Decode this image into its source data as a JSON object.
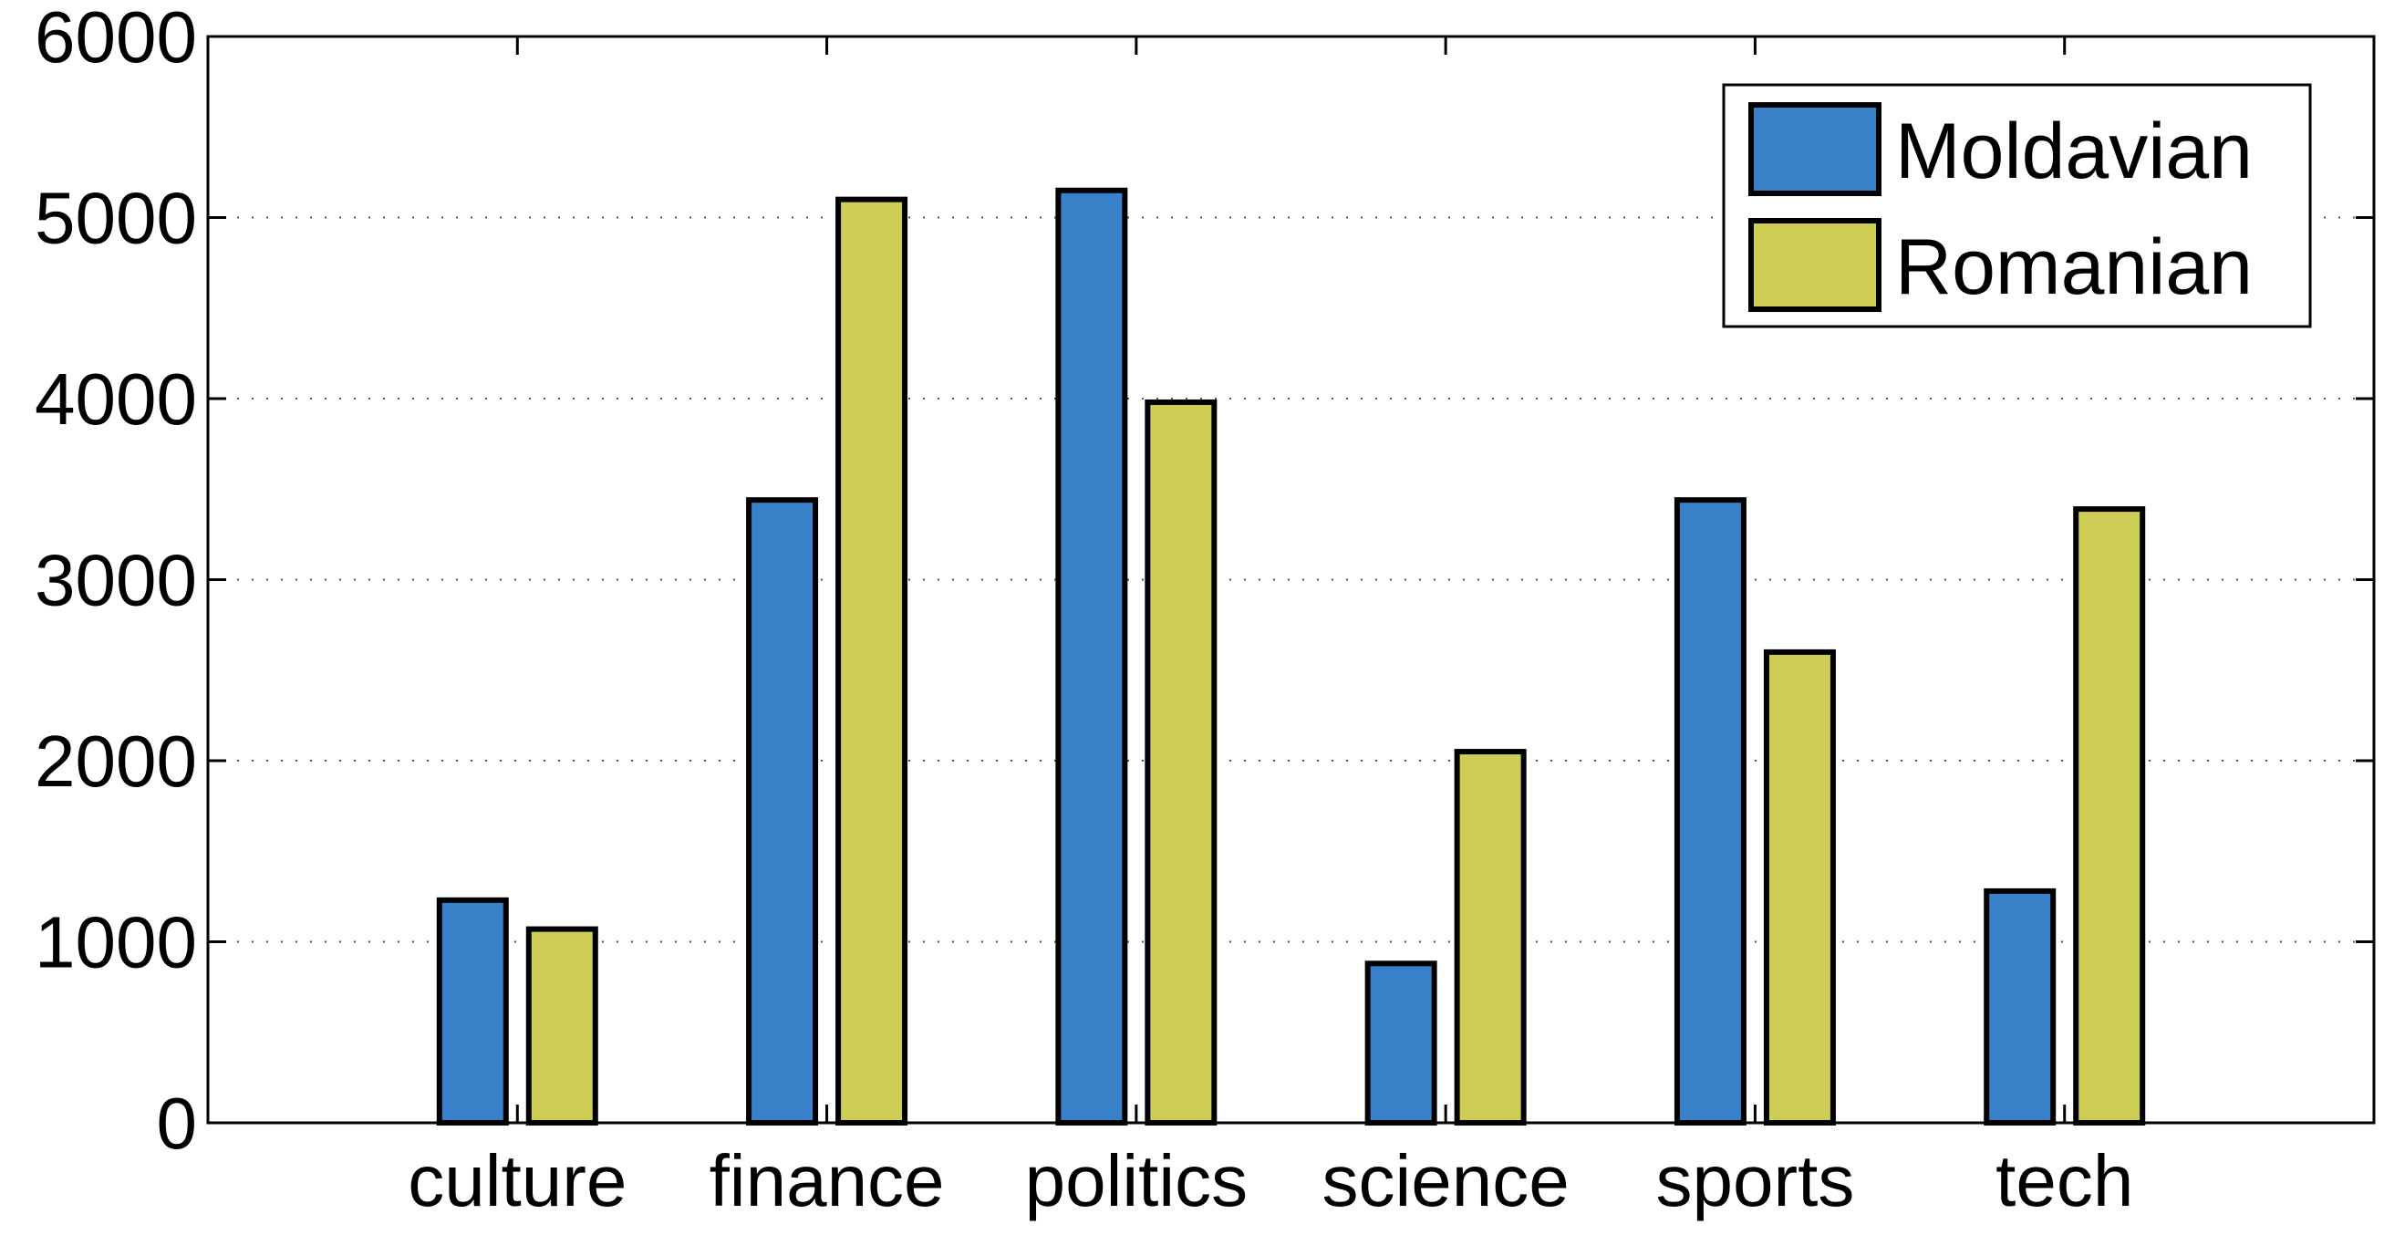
{
  "chart_data": {
    "type": "bar",
    "categories": [
      "culture",
      "finance",
      "politics",
      "science",
      "sports",
      "tech"
    ],
    "series": [
      {
        "name": "Moldavian",
        "color": "#3880C8",
        "values": [
          1230,
          3440,
          5150,
          880,
          3440,
          1280
        ]
      },
      {
        "name": "Romanian",
        "color": "#CECD55",
        "values": [
          1070,
          5100,
          3980,
          2050,
          2600,
          3390
        ]
      }
    ],
    "title": "",
    "xlabel": "",
    "ylabel": "",
    "ylim": [
      0,
      6000
    ],
    "yticks": [
      0,
      1000,
      2000,
      3000,
      4000,
      5000,
      6000
    ],
    "grid": "y-dotted",
    "legend_position": "top-right"
  }
}
